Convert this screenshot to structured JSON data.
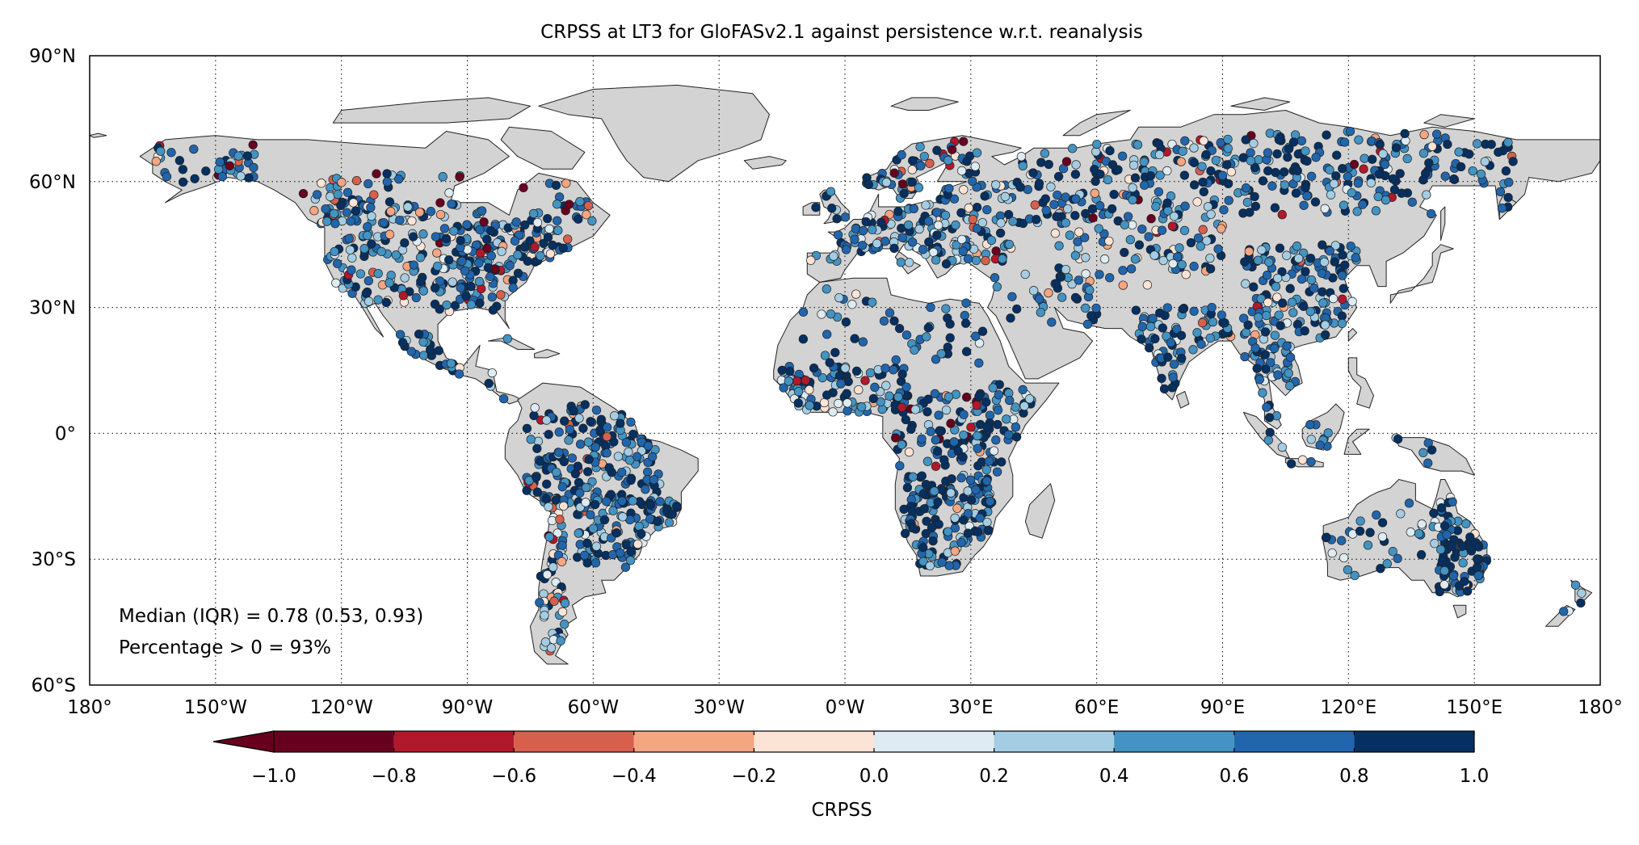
{
  "title": "CRPSS at LT3 for GloFASv2.1 against persistence w.r.t. reanalysis",
  "map": {
    "lon_range": [
      -180,
      180
    ],
    "lat_range": [
      -60,
      90
    ],
    "land_color": "#d3d3d3",
    "coast_color": "#222222",
    "gridlines": "dotted",
    "lat_ticks": [
      {
        "value": 90,
        "label": "90°N"
      },
      {
        "value": 60,
        "label": "60°N"
      },
      {
        "value": 30,
        "label": "30°N"
      },
      {
        "value": 0,
        "label": "0°"
      },
      {
        "value": -30,
        "label": "30°S"
      },
      {
        "value": -60,
        "label": "60°S"
      }
    ],
    "lon_ticks": [
      {
        "value": -180,
        "label": "180°"
      },
      {
        "value": -150,
        "label": "150°W"
      },
      {
        "value": -120,
        "label": "120°W"
      },
      {
        "value": -90,
        "label": "90°W"
      },
      {
        "value": -60,
        "label": "60°W"
      },
      {
        "value": -30,
        "label": "30°W"
      },
      {
        "value": 0,
        "label": "0°W"
      },
      {
        "value": 30,
        "label": "30°E"
      },
      {
        "value": 60,
        "label": "60°E"
      },
      {
        "value": 90,
        "label": "90°E"
      },
      {
        "value": 120,
        "label": "120°E"
      },
      {
        "value": 150,
        "label": "150°E"
      },
      {
        "value": 180,
        "label": "180°"
      }
    ]
  },
  "stats": {
    "median_line": "Median (IQR) = 0.78 (0.53, 0.93)",
    "percentage_line": "Percentage > 0 = 93%"
  },
  "colorbar": {
    "label": "CRPSS",
    "extend": "min",
    "bounds": [
      -1.0,
      -0.8,
      -0.6,
      -0.4,
      -0.2,
      0.0,
      0.2,
      0.4,
      0.6,
      0.8,
      1.0
    ],
    "tick_labels": [
      "−1.0",
      "−0.8",
      "−0.6",
      "−0.4",
      "−0.2",
      "0.0",
      "0.2",
      "0.4",
      "0.6",
      "0.8",
      "1.0"
    ],
    "colors": [
      "#67001f",
      "#b2182b",
      "#d6604d",
      "#f4a582",
      "#fbe3d6",
      "#deebf2",
      "#a4cde3",
      "#4393c3",
      "#2166ac",
      "#053061"
    ],
    "extend_color": "#67001f"
  },
  "stations": {
    "marker_stroke": "#222222",
    "description_of_values": "CRPSS per station",
    "summary": {
      "median": 0.78,
      "q1": 0.53,
      "q3": 0.93,
      "percent_positive": 93
    },
    "clusters": [
      {
        "name": "north-america-east",
        "lon": [
          -98,
          -66
        ],
        "lat": [
          29,
          50
        ],
        "count": 190,
        "dist": [
          0.02,
          0.02,
          0.02,
          0.02,
          0.03,
          0.04,
          0.08,
          0.17,
          0.3,
          0.3
        ]
      },
      {
        "name": "north-america-west",
        "lon": [
          -124,
          -100
        ],
        "lat": [
          31,
          56
        ],
        "count": 130,
        "dist": [
          0.02,
          0.02,
          0.01,
          0.02,
          0.03,
          0.05,
          0.1,
          0.2,
          0.28,
          0.27
        ]
      },
      {
        "name": "canada",
        "lon": [
          -130,
          -60
        ],
        "lat": [
          50,
          62
        ],
        "count": 90,
        "dist": [
          0.08,
          0.05,
          0.04,
          0.05,
          0.06,
          0.06,
          0.09,
          0.17,
          0.2,
          0.2
        ]
      },
      {
        "name": "alaska",
        "lon": [
          -165,
          -140
        ],
        "lat": [
          59,
          69
        ],
        "count": 40,
        "dist": [
          0.12,
          0.06,
          0.04,
          0.04,
          0.06,
          0.05,
          0.1,
          0.18,
          0.18,
          0.17
        ]
      },
      {
        "name": "central-america",
        "lon": [
          -106,
          -80
        ],
        "lat": [
          8,
          24
        ],
        "count": 30,
        "dist": [
          0,
          0,
          0,
          0.01,
          0.02,
          0.05,
          0.1,
          0.25,
          0.27,
          0.3
        ]
      },
      {
        "name": "amazon",
        "lon": [
          -76,
          -44
        ],
        "lat": [
          -17,
          7
        ],
        "count": 200,
        "dist": [
          0,
          0.01,
          0.01,
          0.01,
          0.01,
          0.03,
          0.06,
          0.17,
          0.3,
          0.4
        ]
      },
      {
        "name": "south-brazil",
        "lon": [
          -64,
          -40
        ],
        "lat": [
          -32,
          -16
        ],
        "count": 110,
        "dist": [
          0,
          0,
          0.01,
          0.01,
          0.02,
          0.04,
          0.08,
          0.2,
          0.29,
          0.35
        ]
      },
      {
        "name": "andes",
        "lon": [
          -76,
          -67
        ],
        "lat": [
          -42,
          -15
        ],
        "count": 55,
        "dist": [
          0.03,
          0.03,
          0.04,
          0.04,
          0.06,
          0.08,
          0.14,
          0.2,
          0.18,
          0.2
        ]
      },
      {
        "name": "patagonia",
        "lon": [
          -72,
          -66
        ],
        "lat": [
          -52,
          -40
        ],
        "count": 18,
        "dist": [
          0,
          0,
          0.02,
          0.04,
          0.08,
          0.12,
          0.3,
          0.24,
          0.12,
          0.08
        ]
      },
      {
        "name": "europe",
        "lon": [
          -9,
          40
        ],
        "lat": [
          40,
          60
        ],
        "count": 190,
        "dist": [
          0.01,
          0.01,
          0.02,
          0.02,
          0.04,
          0.05,
          0.12,
          0.22,
          0.27,
          0.24
        ]
      },
      {
        "name": "scandinavia",
        "lon": [
          5,
          32
        ],
        "lat": [
          58,
          70
        ],
        "count": 55,
        "dist": [
          0.12,
          0.06,
          0.05,
          0.04,
          0.05,
          0.05,
          0.09,
          0.17,
          0.18,
          0.19
        ]
      },
      {
        "name": "russia-west",
        "lon": [
          40,
          90
        ],
        "lat": [
          50,
          70
        ],
        "count": 170,
        "dist": [
          0.03,
          0.03,
          0.02,
          0.02,
          0.03,
          0.04,
          0.1,
          0.2,
          0.26,
          0.27
        ]
      },
      {
        "name": "siberia-east",
        "lon": [
          90,
          160
        ],
        "lat": [
          52,
          72
        ],
        "count": 210,
        "dist": [
          0.01,
          0.02,
          0.01,
          0.01,
          0.02,
          0.04,
          0.08,
          0.18,
          0.3,
          0.33
        ]
      },
      {
        "name": "central-asia",
        "lon": [
          50,
          90
        ],
        "lat": [
          35,
          50
        ],
        "count": 80,
        "dist": [
          0.01,
          0.02,
          0.03,
          0.04,
          0.06,
          0.08,
          0.13,
          0.2,
          0.22,
          0.21
        ]
      },
      {
        "name": "china",
        "lon": [
          95,
          122
        ],
        "lat": [
          22,
          45
        ],
        "count": 150,
        "dist": [
          0,
          0.01,
          0.01,
          0.01,
          0.02,
          0.04,
          0.1,
          0.2,
          0.28,
          0.33
        ]
      },
      {
        "name": "india",
        "lon": [
          68,
          92
        ],
        "lat": [
          10,
          30
        ],
        "count": 80,
        "dist": [
          0,
          0,
          0.01,
          0.01,
          0.02,
          0.04,
          0.1,
          0.22,
          0.28,
          0.32
        ]
      },
      {
        "name": "southeast-asia",
        "lon": [
          95,
          110
        ],
        "lat": [
          5,
          22
        ],
        "count": 50,
        "dist": [
          0,
          0,
          0,
          0.01,
          0.02,
          0.04,
          0.1,
          0.21,
          0.3,
          0.32
        ]
      },
      {
        "name": "indonesia",
        "lon": [
          100,
          140
        ],
        "lat": [
          -8,
          5
        ],
        "count": 22,
        "dist": [
          0,
          0,
          0,
          0,
          0.03,
          0.05,
          0.12,
          0.25,
          0.28,
          0.27
        ]
      },
      {
        "name": "west-africa",
        "lon": [
          -16,
          15
        ],
        "lat": [
          5,
          16
        ],
        "count": 110,
        "dist": [
          0,
          0.01,
          0.01,
          0.02,
          0.05,
          0.07,
          0.16,
          0.2,
          0.2,
          0.28
        ]
      },
      {
        "name": "central-africa",
        "lon": [
          12,
          35
        ],
        "lat": [
          -8,
          10
        ],
        "count": 90,
        "dist": [
          0.08,
          0.05,
          0.02,
          0.02,
          0.03,
          0.04,
          0.08,
          0.17,
          0.23,
          0.28
        ]
      },
      {
        "name": "southern-africa",
        "lon": [
          14,
          35
        ],
        "lat": [
          -32,
          -10
        ],
        "count": 160,
        "dist": [
          0,
          0,
          0,
          0.01,
          0.02,
          0.04,
          0.1,
          0.22,
          0.28,
          0.33
        ]
      },
      {
        "name": "east-africa",
        "lon": [
          30,
          48
        ],
        "lat": [
          -10,
          12
        ],
        "count": 45,
        "dist": [
          0,
          0,
          0.01,
          0.02,
          0.03,
          0.05,
          0.1,
          0.2,
          0.28,
          0.31
        ]
      },
      {
        "name": "sahara-north-africa",
        "lon": [
          -10,
          35
        ],
        "lat": [
          16,
          35
        ],
        "count": 50,
        "dist": [
          0,
          0,
          0,
          0.01,
          0.02,
          0.03,
          0.07,
          0.15,
          0.27,
          0.45
        ]
      },
      {
        "name": "middle-east",
        "lon": [
          35,
          60
        ],
        "lat": [
          25,
          38
        ],
        "count": 30,
        "dist": [
          0,
          0,
          0.01,
          0.01,
          0.02,
          0.05,
          0.1,
          0.2,
          0.28,
          0.33
        ]
      },
      {
        "name": "australia-east",
        "lon": [
          140,
          153
        ],
        "lat": [
          -38,
          -15
        ],
        "count": 90,
        "dist": [
          0,
          0,
          0,
          0.01,
          0.02,
          0.04,
          0.08,
          0.18,
          0.3,
          0.37
        ]
      },
      {
        "name": "australia-west",
        "lon": [
          114,
          138
        ],
        "lat": [
          -34,
          -15
        ],
        "count": 30,
        "dist": [
          0,
          0,
          0.02,
          0.03,
          0.04,
          0.06,
          0.12,
          0.22,
          0.26,
          0.25
        ]
      },
      {
        "name": "new-zealand",
        "lon": [
          168,
          178
        ],
        "lat": [
          -46,
          -36
        ],
        "count": 5,
        "dist": [
          0,
          0,
          0,
          0,
          0,
          0.1,
          0.2,
          0.3,
          0.2,
          0.2
        ]
      }
    ]
  }
}
